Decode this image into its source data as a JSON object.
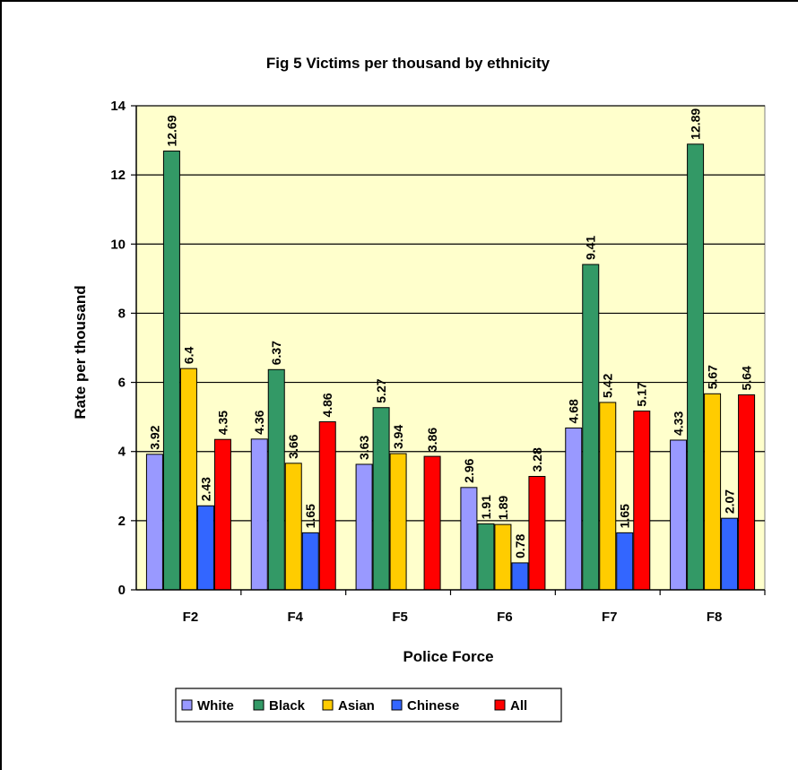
{
  "chart_data": {
    "type": "bar",
    "title": "Fig 5  Victims per thousand by ethnicity",
    "xlabel": "Police Force",
    "ylabel": "Rate per thousand",
    "categories": [
      "F2",
      "F4",
      "F5",
      "F6",
      "F7",
      "F8"
    ],
    "ylim": [
      0,
      14
    ],
    "yticks": [
      0,
      2,
      4,
      6,
      8,
      10,
      12,
      14
    ],
    "grid": true,
    "legend_position": "bottom",
    "series": [
      {
        "name": "White",
        "color": "#9999ff",
        "values": [
          3.92,
          4.36,
          3.63,
          2.96,
          4.68,
          4.33
        ],
        "labels": [
          "3.92",
          "4.36",
          "3.63",
          "2.96",
          "4.68",
          "4.33"
        ]
      },
      {
        "name": "Black",
        "color": "#339966",
        "values": [
          12.69,
          6.37,
          5.27,
          1.91,
          9.41,
          12.89
        ],
        "labels": [
          "12.69",
          "6.37",
          "5.27",
          "1.91",
          "9.41",
          "12.89"
        ]
      },
      {
        "name": "Asian",
        "color": "#ffcc00",
        "values": [
          6.4,
          3.66,
          3.94,
          1.89,
          5.42,
          5.67
        ],
        "labels": [
          "6.4",
          "3.66",
          "3.94",
          "1.89",
          "5.42",
          "5.67"
        ]
      },
      {
        "name": "Chinese",
        "color": "#3366ff",
        "values": [
          2.43,
          1.65,
          null,
          0.78,
          1.65,
          2.07
        ],
        "labels": [
          "2.43",
          "1.65",
          "",
          "0.78",
          "1.65",
          "2.07"
        ]
      },
      {
        "name": "All",
        "color": "#ff0000",
        "values": [
          4.35,
          4.86,
          3.86,
          3.28,
          5.17,
          5.64
        ],
        "labels": [
          "4.35",
          "4.86",
          "3.86",
          "3.28",
          "5.17",
          "5.64"
        ]
      }
    ],
    "plot_background": "#ffffcc"
  }
}
